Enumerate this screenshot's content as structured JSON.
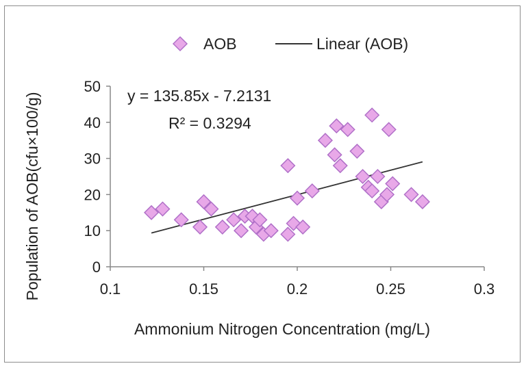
{
  "chart_data": {
    "type": "scatter",
    "xlabel": "Ammonium Nitrogen Concentration (mg/L)",
    "ylabel": "Population of AOB(cfu×100/g)",
    "xlim": [
      0.1,
      0.3
    ],
    "ylim": [
      0,
      50
    ],
    "xticks": [
      "0.1",
      "0.15",
      "0.2",
      "0.25",
      "0.3"
    ],
    "yticks": [
      "0",
      "10",
      "20",
      "30",
      "40",
      "50"
    ],
    "grid": false,
    "legend_position": "top",
    "series": [
      {
        "name": "AOB",
        "marker": "diamond",
        "color": "#e8a8e8",
        "stroke": "#b070c8",
        "points": [
          [
            0.122,
            15
          ],
          [
            0.128,
            16
          ],
          [
            0.138,
            13
          ],
          [
            0.148,
            11
          ],
          [
            0.15,
            18
          ],
          [
            0.154,
            16
          ],
          [
            0.16,
            11
          ],
          [
            0.166,
            13
          ],
          [
            0.17,
            10
          ],
          [
            0.172,
            14
          ],
          [
            0.176,
            14
          ],
          [
            0.178,
            11
          ],
          [
            0.18,
            13
          ],
          [
            0.182,
            9
          ],
          [
            0.186,
            10
          ],
          [
            0.195,
            28
          ],
          [
            0.195,
            9
          ],
          [
            0.198,
            12
          ],
          [
            0.2,
            19
          ],
          [
            0.203,
            11
          ],
          [
            0.208,
            21
          ],
          [
            0.215,
            35
          ],
          [
            0.22,
            31
          ],
          [
            0.221,
            39
          ],
          [
            0.223,
            28
          ],
          [
            0.227,
            38
          ],
          [
            0.232,
            32
          ],
          [
            0.235,
            25
          ],
          [
            0.238,
            22
          ],
          [
            0.24,
            42
          ],
          [
            0.24,
            21
          ],
          [
            0.243,
            25
          ],
          [
            0.245,
            18
          ],
          [
            0.248,
            20
          ],
          [
            0.249,
            38
          ],
          [
            0.251,
            23
          ],
          [
            0.261,
            20
          ],
          [
            0.267,
            18
          ]
        ]
      },
      {
        "name": "Linear (AOB)",
        "type": "line",
        "color": "#333333",
        "slope": 135.85,
        "intercept": -7.2131,
        "x_range": [
          0.122,
          0.267
        ]
      }
    ],
    "annotations": {
      "equation": "y = 135.85x - 7.2131",
      "r_squared": "R² = 0.3294"
    }
  }
}
